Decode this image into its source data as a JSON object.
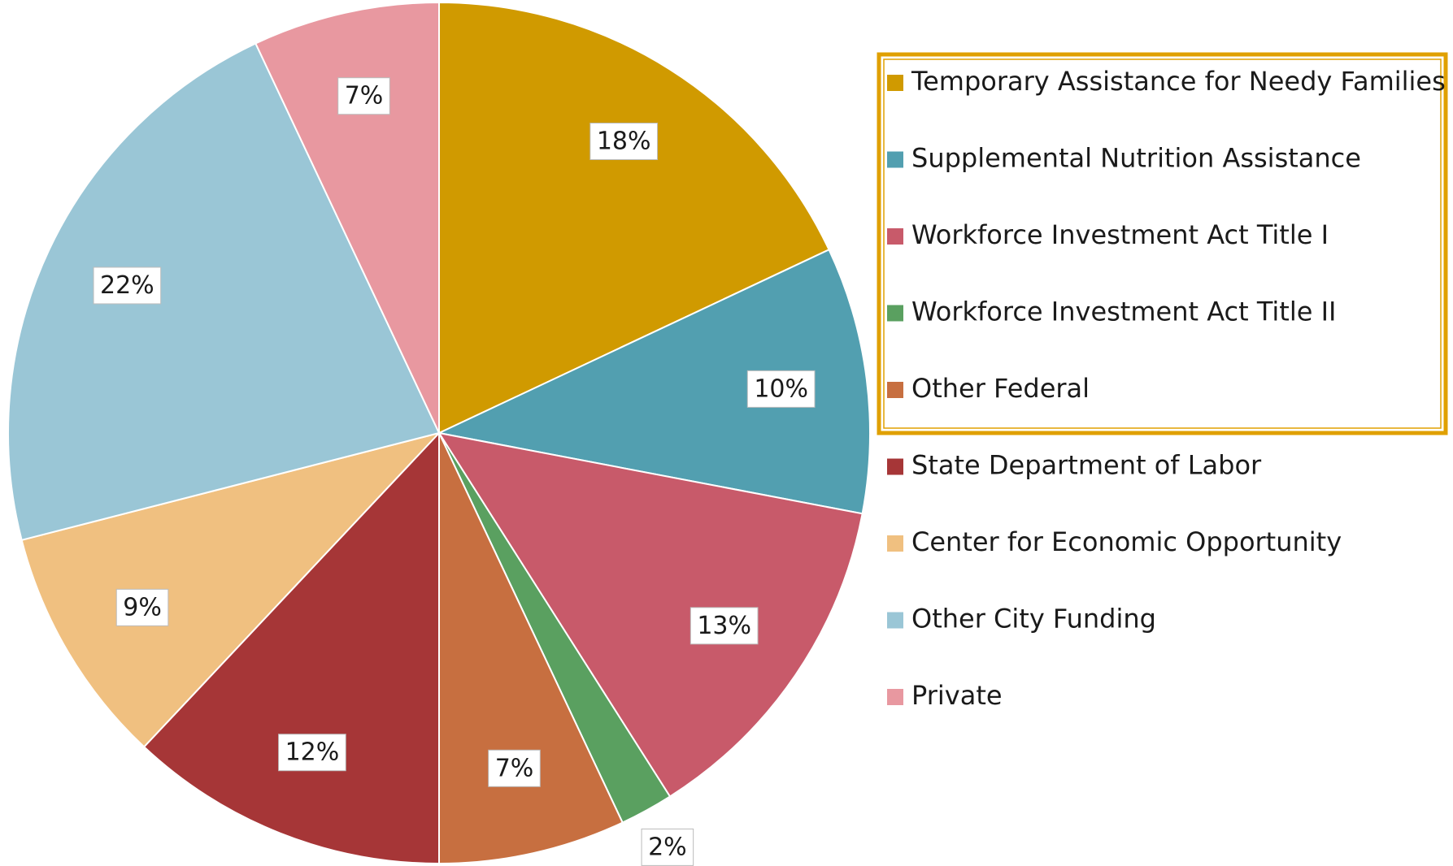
{
  "chart_data": {
    "type": "pie",
    "categories": [
      "Temporary Assistance for Needy Families",
      "Supplemental Nutrition Assistance",
      "Workforce Investment Act Title I",
      "Workforce Investment Act Title II",
      "Other Federal",
      "State Department of Labor",
      "Center for Economic Opportunity",
      "Other City Funding",
      "Private"
    ],
    "values": [
      18,
      10,
      13,
      2,
      7,
      12,
      9,
      22,
      7
    ],
    "value_labels": [
      "18%",
      "10%",
      "13%",
      "2%",
      "7%",
      "12%",
      "9%",
      "22%",
      "7%"
    ],
    "colors": [
      "#d09a00",
      "#529fb0",
      "#c85a6a",
      "#5aa060",
      "#c76f40",
      "#a63637",
      "#f0c080",
      "#9ac6d6",
      "#e898a0"
    ],
    "legend": "right"
  }
}
